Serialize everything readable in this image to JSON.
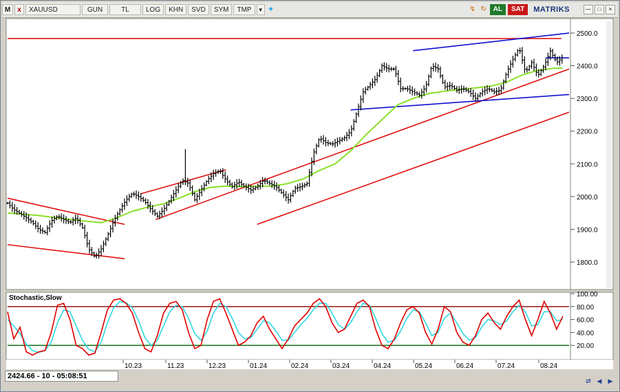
{
  "toolbar": {
    "m_label": "M",
    "close_label": "x",
    "symbol": "XAUUSD",
    "period": "GUN",
    "currency": "TL",
    "buttons": [
      "LOG",
      "KHN",
      "SVD",
      "SYM",
      "TMP"
    ],
    "al_label": "AL",
    "sat_label": "SAT",
    "brand": "MATRIKS"
  },
  "status": {
    "text": "2424.66 - 10 - 05:08:51"
  },
  "colors": {
    "price": "#000000",
    "ma": "#88e028",
    "channel": "#e01010",
    "blue_lines": "#1010d0",
    "stoch_k": "#e00000",
    "stoch_d": "#30d8e0",
    "level_high": "#8b0000",
    "level_low": "#006400"
  },
  "chart_data": [
    {
      "type": "candlestick",
      "symbol": "XAUUSD",
      "x_labels": [
        "10.23",
        "11.23",
        "12.23",
        "01.24",
        "02.24",
        "03.24",
        "04.24",
        "05.24",
        "06.24",
        "07.24",
        "08.24"
      ],
      "y_ticks": [
        1800,
        1900,
        2000,
        2100,
        2200,
        2300,
        2400,
        2500
      ],
      "ylim": [
        1720,
        2540
      ],
      "close_series": [
        [
          0,
          1980
        ],
        [
          4,
          1960
        ],
        [
          8,
          1948
        ],
        [
          12,
          1935
        ],
        [
          16,
          1920
        ],
        [
          20,
          1900
        ],
        [
          24,
          1890
        ],
        [
          28,
          1925
        ],
        [
          32,
          1940
        ],
        [
          36,
          1930
        ],
        [
          40,
          1920
        ],
        [
          44,
          1935
        ],
        [
          48,
          1905
        ],
        [
          52,
          1840
        ],
        [
          56,
          1815
        ],
        [
          60,
          1840
        ],
        [
          64,
          1880
        ],
        [
          68,
          1925
        ],
        [
          72,
          1960
        ],
        [
          76,
          1990
        ],
        [
          80,
          2010
        ],
        [
          84,
          2000
        ],
        [
          88,
          1985
        ],
        [
          92,
          1960
        ],
        [
          96,
          1940
        ],
        [
          100,
          1960
        ],
        [
          104,
          1990
        ],
        [
          108,
          2020
        ],
        [
          112,
          2050
        ],
        [
          116,
          2040
        ],
        [
          120,
          1990
        ],
        [
          124,
          2020
        ],
        [
          128,
          2050
        ],
        [
          132,
          2070
        ],
        [
          136,
          2080
        ],
        [
          140,
          2050
        ],
        [
          144,
          2030
        ],
        [
          148,
          2045
        ],
        [
          152,
          2030
        ],
        [
          156,
          2020
        ],
        [
          160,
          2030
        ],
        [
          164,
          2050
        ],
        [
          168,
          2040
        ],
        [
          172,
          2030
        ],
        [
          176,
          2010
        ],
        [
          180,
          1990
        ],
        [
          184,
          2025
        ],
        [
          188,
          2030
        ],
        [
          192,
          2040
        ],
        [
          196,
          2130
        ],
        [
          200,
          2180
        ],
        [
          204,
          2165
        ],
        [
          208,
          2160
        ],
        [
          212,
          2170
        ],
        [
          216,
          2180
        ],
        [
          220,
          2200
        ],
        [
          224,
          2260
        ],
        [
          228,
          2320
        ],
        [
          232,
          2340
        ],
        [
          236,
          2360
        ],
        [
          240,
          2400
        ],
        [
          244,
          2390
        ],
        [
          248,
          2390
        ],
        [
          252,
          2330
        ],
        [
          256,
          2330
        ],
        [
          260,
          2320
        ],
        [
          264,
          2310
        ],
        [
          268,
          2335
        ],
        [
          272,
          2400
        ],
        [
          276,
          2390
        ],
        [
          280,
          2335
        ],
        [
          284,
          2340
        ],
        [
          288,
          2325
        ],
        [
          292,
          2330
        ],
        [
          296,
          2320
        ],
        [
          300,
          2300
        ],
        [
          304,
          2320
        ],
        [
          308,
          2330
        ],
        [
          312,
          2320
        ],
        [
          316,
          2325
        ],
        [
          320,
          2380
        ],
        [
          324,
          2420
        ],
        [
          328,
          2455
        ],
        [
          332,
          2380
        ],
        [
          336,
          2410
        ],
        [
          340,
          2370
        ],
        [
          344,
          2400
        ],
        [
          348,
          2445
        ],
        [
          352,
          2410
        ],
        [
          356,
          2425
        ]
      ],
      "moving_average": [
        [
          0,
          1950
        ],
        [
          20,
          1942
        ],
        [
          40,
          1930
        ],
        [
          60,
          1920
        ],
        [
          70,
          1935
        ],
        [
          80,
          1955
        ],
        [
          90,
          1968
        ],
        [
          100,
          1978
        ],
        [
          110,
          1995
        ],
        [
          120,
          2015
        ],
        [
          130,
          2028
        ],
        [
          140,
          2032
        ],
        [
          150,
          2030
        ],
        [
          160,
          2032
        ],
        [
          170,
          2032
        ],
        [
          180,
          2040
        ],
        [
          190,
          2055
        ],
        [
          200,
          2080
        ],
        [
          210,
          2100
        ],
        [
          220,
          2140
        ],
        [
          230,
          2190
        ],
        [
          240,
          2235
        ],
        [
          250,
          2280
        ],
        [
          260,
          2300
        ],
        [
          270,
          2315
        ],
        [
          280,
          2322
        ],
        [
          290,
          2328
        ],
        [
          300,
          2332
        ],
        [
          310,
          2338
        ],
        [
          320,
          2350
        ],
        [
          330,
          2372
        ],
        [
          340,
          2386
        ],
        [
          350,
          2392
        ],
        [
          356,
          2393
        ]
      ],
      "trendlines": [
        {
          "color": "red",
          "from": [
            0,
            1995
          ],
          "to": [
            75,
            1915
          ]
        },
        {
          "color": "red",
          "from": [
            0,
            1853
          ],
          "to": [
            75,
            1810
          ]
        },
        {
          "color": "red",
          "from": [
            85,
            2008
          ],
          "to": [
            140,
            2082
          ]
        },
        {
          "color": "red",
          "from": [
            95,
            1930
          ],
          "to": [
            360,
            2390
          ]
        },
        {
          "color": "red",
          "from": [
            160,
            1915
          ],
          "to": [
            360,
            2258
          ]
        },
        {
          "color": "red",
          "from": [
            0,
            2483
          ],
          "to": [
            355,
            2483
          ]
        },
        {
          "color": "blue",
          "from": [
            260,
            2446
          ],
          "to": [
            360,
            2500
          ]
        },
        {
          "color": "blue",
          "from": [
            220,
            2265
          ],
          "to": [
            360,
            2312
          ]
        },
        {
          "color": "blue",
          "from": [
            345,
            2424
          ],
          "to": [
            360,
            2424
          ]
        }
      ]
    },
    {
      "type": "line",
      "title": "Stochastic,Slow",
      "y_ticks": [
        20,
        40,
        60,
        80,
        100
      ],
      "ylim": [
        0,
        100
      ],
      "levels": [
        80,
        20
      ],
      "k_series": [
        [
          0,
          72
        ],
        [
          4,
          30
        ],
        [
          8,
          48
        ],
        [
          12,
          10
        ],
        [
          16,
          5
        ],
        [
          20,
          10
        ],
        [
          24,
          12
        ],
        [
          28,
          40
        ],
        [
          32,
          82
        ],
        [
          36,
          85
        ],
        [
          40,
          60
        ],
        [
          44,
          20
        ],
        [
          48,
          15
        ],
        [
          52,
          5
        ],
        [
          56,
          8
        ],
        [
          60,
          40
        ],
        [
          64,
          75
        ],
        [
          68,
          90
        ],
        [
          72,
          92
        ],
        [
          76,
          85
        ],
        [
          80,
          70
        ],
        [
          84,
          40
        ],
        [
          88,
          15
        ],
        [
          92,
          10
        ],
        [
          96,
          35
        ],
        [
          100,
          70
        ],
        [
          104,
          85
        ],
        [
          108,
          88
        ],
        [
          112,
          75
        ],
        [
          116,
          40
        ],
        [
          120,
          15
        ],
        [
          124,
          20
        ],
        [
          128,
          60
        ],
        [
          132,
          88
        ],
        [
          136,
          92
        ],
        [
          140,
          70
        ],
        [
          144,
          45
        ],
        [
          148,
          20
        ],
        [
          152,
          25
        ],
        [
          156,
          35
        ],
        [
          160,
          55
        ],
        [
          164,
          65
        ],
        [
          168,
          45
        ],
        [
          172,
          30
        ],
        [
          176,
          15
        ],
        [
          180,
          30
        ],
        [
          184,
          50
        ],
        [
          188,
          60
        ],
        [
          192,
          70
        ],
        [
          196,
          85
        ],
        [
          200,
          92
        ],
        [
          204,
          80
        ],
        [
          208,
          55
        ],
        [
          212,
          40
        ],
        [
          216,
          45
        ],
        [
          220,
          65
        ],
        [
          224,
          85
        ],
        [
          228,
          90
        ],
        [
          232,
          80
        ],
        [
          236,
          45
        ],
        [
          240,
          20
        ],
        [
          244,
          15
        ],
        [
          248,
          30
        ],
        [
          252,
          55
        ],
        [
          256,
          75
        ],
        [
          260,
          80
        ],
        [
          264,
          70
        ],
        [
          268,
          40
        ],
        [
          272,
          22
        ],
        [
          276,
          45
        ],
        [
          280,
          80
        ],
        [
          284,
          72
        ],
        [
          288,
          40
        ],
        [
          292,
          25
        ],
        [
          296,
          20
        ],
        [
          300,
          35
        ],
        [
          304,
          60
        ],
        [
          308,
          70
        ],
        [
          312,
          55
        ],
        [
          316,
          45
        ],
        [
          320,
          65
        ],
        [
          324,
          80
        ],
        [
          328,
          90
        ],
        [
          332,
          60
        ],
        [
          336,
          35
        ],
        [
          340,
          60
        ],
        [
          344,
          88
        ],
        [
          348,
          70
        ],
        [
          352,
          45
        ],
        [
          356,
          65
        ]
      ],
      "d_series": [
        [
          0,
          60
        ],
        [
          4,
          50
        ],
        [
          8,
          38
        ],
        [
          12,
          22
        ],
        [
          16,
          12
        ],
        [
          20,
          9
        ],
        [
          24,
          12
        ],
        [
          28,
          25
        ],
        [
          32,
          55
        ],
        [
          36,
          75
        ],
        [
          40,
          72
        ],
        [
          44,
          50
        ],
        [
          48,
          28
        ],
        [
          52,
          14
        ],
        [
          56,
          10
        ],
        [
          60,
          25
        ],
        [
          64,
          55
        ],
        [
          68,
          78
        ],
        [
          72,
          88
        ],
        [
          76,
          86
        ],
        [
          80,
          78
        ],
        [
          84,
          58
        ],
        [
          88,
          32
        ],
        [
          92,
          20
        ],
        [
          96,
          28
        ],
        [
          100,
          50
        ],
        [
          104,
          72
        ],
        [
          108,
          82
        ],
        [
          112,
          80
        ],
        [
          116,
          62
        ],
        [
          120,
          38
        ],
        [
          124,
          28
        ],
        [
          128,
          42
        ],
        [
          132,
          70
        ],
        [
          136,
          85
        ],
        [
          140,
          80
        ],
        [
          144,
          62
        ],
        [
          148,
          40
        ],
        [
          152,
          30
        ],
        [
          156,
          32
        ],
        [
          160,
          45
        ],
        [
          164,
          58
        ],
        [
          168,
          55
        ],
        [
          172,
          42
        ],
        [
          176,
          28
        ],
        [
          180,
          28
        ],
        [
          184,
          40
        ],
        [
          188,
          52
        ],
        [
          192,
          62
        ],
        [
          196,
          75
        ],
        [
          200,
          85
        ],
        [
          204,
          85
        ],
        [
          208,
          70
        ],
        [
          212,
          52
        ],
        [
          216,
          45
        ],
        [
          220,
          55
        ],
        [
          224,
          72
        ],
        [
          228,
          85
        ],
        [
          232,
          82
        ],
        [
          236,
          62
        ],
        [
          240,
          38
        ],
        [
          244,
          25
        ],
        [
          248,
          28
        ],
        [
          252,
          42
        ],
        [
          256,
          62
        ],
        [
          260,
          75
        ],
        [
          264,
          72
        ],
        [
          268,
          55
        ],
        [
          272,
          35
        ],
        [
          276,
          40
        ],
        [
          280,
          62
        ],
        [
          284,
          70
        ],
        [
          288,
          55
        ],
        [
          292,
          38
        ],
        [
          296,
          28
        ],
        [
          300,
          32
        ],
        [
          304,
          48
        ],
        [
          308,
          60
        ],
        [
          312,
          58
        ],
        [
          316,
          52
        ],
        [
          320,
          58
        ],
        [
          324,
          72
        ],
        [
          328,
          82
        ],
        [
          332,
          72
        ],
        [
          336,
          50
        ],
        [
          340,
          52
        ],
        [
          344,
          72
        ],
        [
          348,
          72
        ],
        [
          352,
          58
        ],
        [
          356,
          60
        ]
      ]
    }
  ]
}
